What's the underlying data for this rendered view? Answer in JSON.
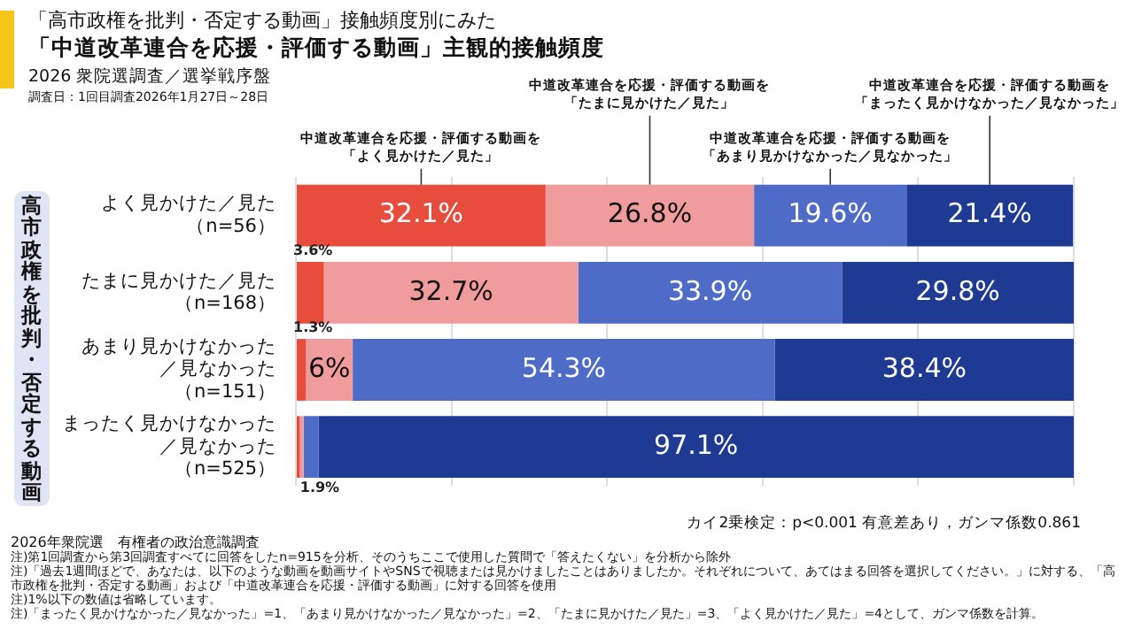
{
  "chart_data": {
    "type": "bar",
    "orientation": "horizontal",
    "stacked": true,
    "title": "「高市政権を批判・否定する動画」接触頻度別にみた",
    "subtitle": "「中道改革連合を応援・評価する動画」主観的接触頻度",
    "ylabel": "高市政権を批判・否定する動画",
    "categories": [
      "よく見かけた／見た（n=56）",
      "たまに見かけた／見た（n=168）",
      "あまり見かけなかった／見なかった（n=151）",
      "まったく見かけなかった／見なかった（n=525）"
    ],
    "series": [
      {
        "name": "中道改革連合を応援・評価する動画を「よく見かけた／見た」",
        "color": "#e84c3d",
        "values": [
          32.1,
          3.6,
          1.3,
          0.5
        ],
        "value_labels": [
          "32.1%",
          "3.6%",
          "1.3%",
          null
        ]
      },
      {
        "name": "中道改革連合を応援・評価する動画を「たまに見かけた／見た」",
        "color": "#f19c9c",
        "values": [
          26.8,
          32.7,
          6,
          0.5
        ],
        "value_labels": [
          "26.8%",
          "32.7%",
          "6%",
          null
        ]
      },
      {
        "name": "中道改革連合を応援・評価する動画を「あまり見かけなかった／見なかった」",
        "color": "#4f6bc8",
        "values": [
          19.6,
          33.9,
          54.3,
          1.9
        ],
        "value_labels": [
          "19.6%",
          "33.9%",
          "54.3%",
          "1.9%"
        ]
      },
      {
        "name": "中道改革連合を応援・評価する動画を「まったく見かけなかった／見なかった」",
        "color": "#1f3a93",
        "values": [
          21.4,
          29.8,
          38.4,
          97.1
        ],
        "value_labels": [
          "21.4%",
          "29.8%",
          "38.4%",
          "97.1%"
        ]
      }
    ],
    "xlim": [
      0,
      100
    ],
    "xticks": [
      {
        "value": 0,
        "label": null
      },
      {
        "value": 20,
        "label": null
      },
      {
        "value": 40,
        "label": null
      },
      {
        "value": 60,
        "label": null
      },
      {
        "value": 80,
        "label": null
      },
      {
        "value": 100,
        "label": null
      }
    ],
    "grid": "x",
    "tick_labels": "y",
    "annotations": [
      "2026 衆院選調査／選挙戦序盤",
      "調査日：1回目調査2026年1月27日～28日",
      "カイ2乗検定：p<0.001 有意差あり，ガンマ係数0.861",
      "2026年衆院選　有権者の政治意識調査",
      "注)第1回調査から第3回調査すべてに回答をしたn=915を分析、そのうちここで使用した質問で「答えたくない」を分析から除外",
      "注)「過去1週間ほどで、あなたは、以下のような動画を動画サイトやSNSで視聴または見かけましたことはありましたか。それぞれについて、あてはまる回答を選択してください。」に対する、「高市政権を批判・否定する動画」および「中道改革連合を応援・評価する動画」に対する回答を使用",
      "注)1%以下の数値は省略しています。",
      "注)「まったく見かけなかった／見なかった」=1、「あまり見かけなかった／見なかった」=2、「たまに見かけた／見た」=3、「よく見かけた／見た」=4として、ガンマ係数を計算。"
    ]
  }
}
